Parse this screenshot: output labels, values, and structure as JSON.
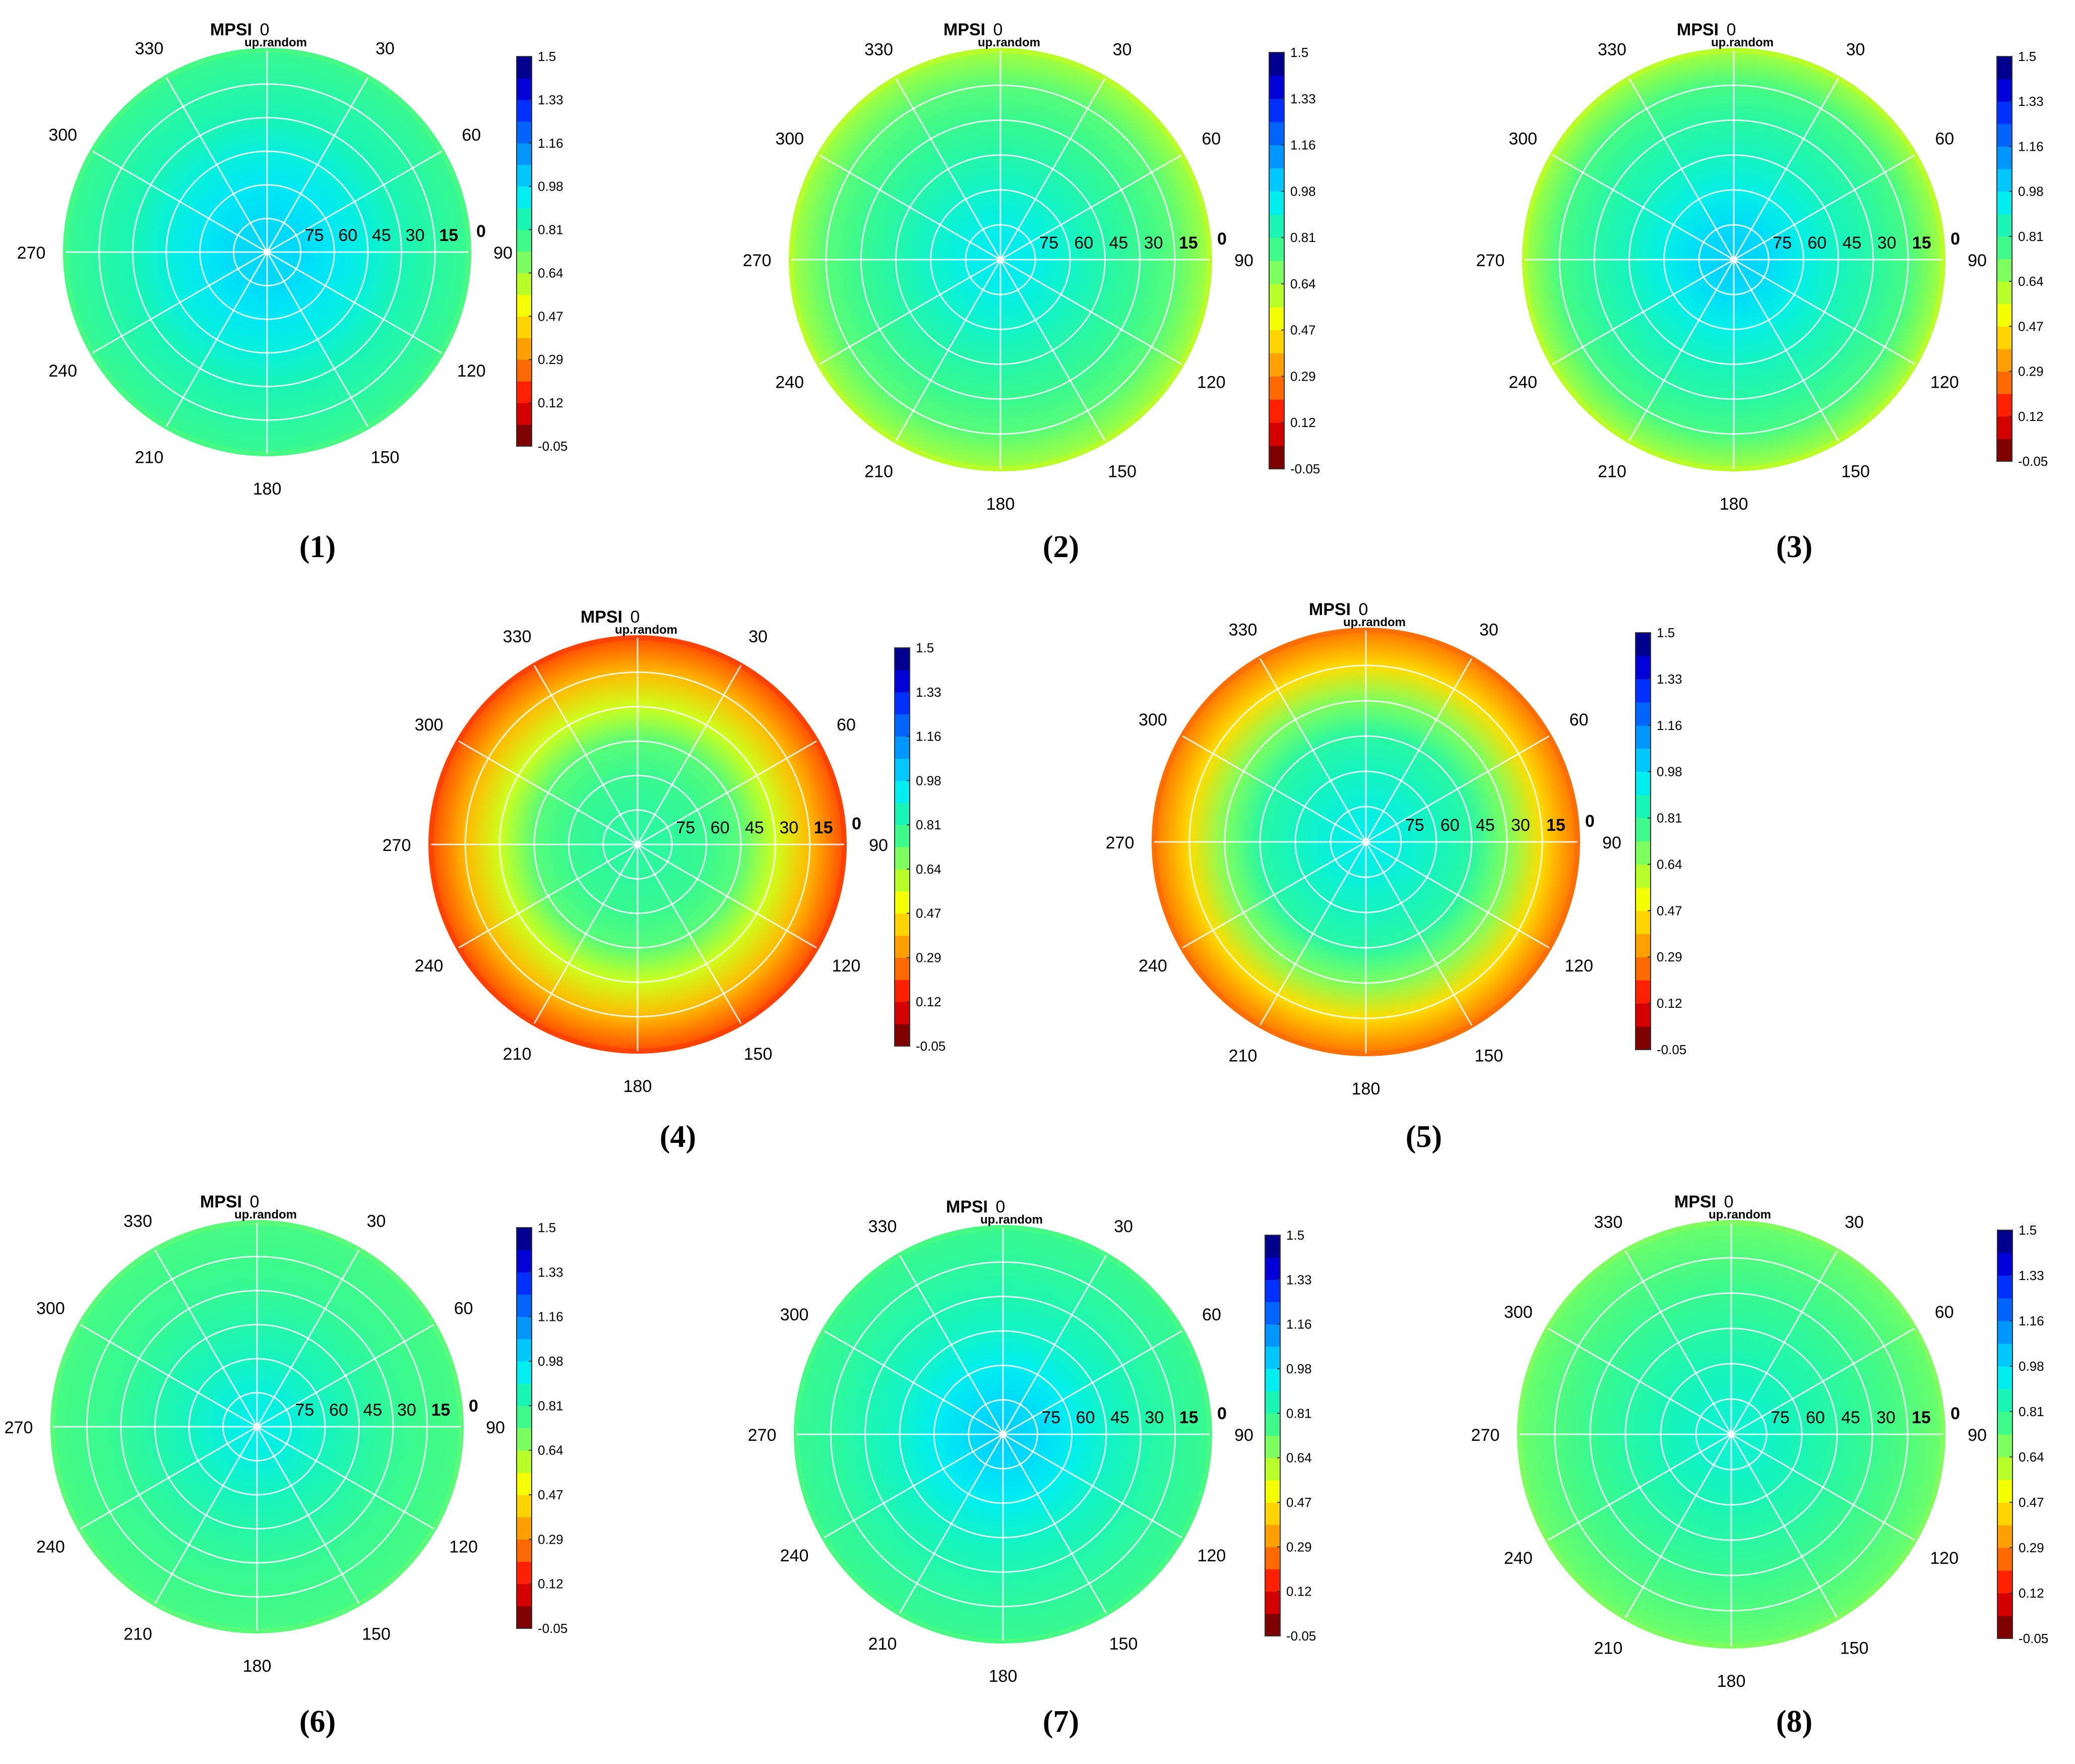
{
  "common": {
    "title_main": "MPSI",
    "title_sub_zero": "0",
    "title_subscript": "up.random",
    "azimuth_labels": [
      "0",
      "30",
      "60",
      "90",
      "120",
      "150",
      "180",
      "210",
      "240",
      "270",
      "300",
      "330"
    ],
    "radial_labels": [
      "75",
      "60",
      "45",
      "30",
      "15",
      "0"
    ],
    "colorbar_ticks": [
      "1.5",
      "1.33",
      "1.16",
      "0.98",
      "0.81",
      "0.64",
      "0.47",
      "0.29",
      "0.12",
      "-0.05"
    ],
    "colorbar_colors": [
      "#7f0000",
      "#d40000",
      "#ff2000",
      "#ff6a00",
      "#ffa000",
      "#ffd400",
      "#f4ff00",
      "#b8ff2a",
      "#7dff5f",
      "#3dfa8a",
      "#19f5b5",
      "#00eef0",
      "#00c8ff",
      "#0096ff",
      "#0064ff",
      "#0030ff",
      "#0000d8",
      "#00008f"
    ]
  },
  "chart_data": [
    {
      "type": "heatmap",
      "projection": "polar",
      "caption": "(1)",
      "title": "MPSI",
      "zlim": [
        -0.05,
        1.5
      ],
      "center_value": 0.96,
      "edge_value": 0.8,
      "rings": [
        0.96,
        0.95,
        0.93,
        0.9,
        0.86,
        0.83,
        0.8
      ]
    },
    {
      "type": "heatmap",
      "projection": "polar",
      "caption": "(2)",
      "title": "MPSI",
      "zlim": [
        -0.05,
        1.5
      ],
      "center_value": 0.93,
      "edge_value": 0.68,
      "rings": [
        0.93,
        0.91,
        0.88,
        0.84,
        0.8,
        0.76,
        0.68
      ]
    },
    {
      "type": "heatmap",
      "projection": "polar",
      "caption": "(3)",
      "title": "MPSI",
      "zlim": [
        -0.05,
        1.5
      ],
      "center_value": 0.97,
      "edge_value": 0.68,
      "rings": [
        0.97,
        0.95,
        0.91,
        0.87,
        0.83,
        0.78,
        0.68
      ]
    },
    {
      "type": "heatmap",
      "projection": "polar",
      "caption": "(4)",
      "title": "MPSI",
      "zlim": [
        -0.05,
        1.5
      ],
      "center_value": 0.83,
      "edge_value": 0.22,
      "rings": [
        0.83,
        0.82,
        0.8,
        0.76,
        0.64,
        0.45,
        0.22
      ]
    },
    {
      "type": "heatmap",
      "projection": "polar",
      "caption": "(5)",
      "title": "MPSI",
      "zlim": [
        -0.05,
        1.5
      ],
      "center_value": 0.92,
      "edge_value": 0.3,
      "rings": [
        0.92,
        0.9,
        0.87,
        0.83,
        0.72,
        0.52,
        0.3
      ]
    },
    {
      "type": "heatmap",
      "projection": "polar",
      "caption": "(6)",
      "title": "MPSI",
      "zlim": [
        -0.05,
        1.5
      ],
      "center_value": 0.92,
      "edge_value": 0.78,
      "rings": [
        0.92,
        0.9,
        0.87,
        0.84,
        0.81,
        0.79,
        0.78
      ]
    },
    {
      "type": "heatmap",
      "projection": "polar",
      "caption": "(7)",
      "title": "MPSI",
      "zlim": [
        -0.05,
        1.5
      ],
      "center_value": 0.97,
      "edge_value": 0.8,
      "rings": [
        0.97,
        0.95,
        0.92,
        0.88,
        0.85,
        0.82,
        0.8
      ]
    },
    {
      "type": "heatmap",
      "projection": "polar",
      "caption": "(8)",
      "title": "MPSI",
      "zlim": [
        -0.05,
        1.5
      ],
      "center_value": 0.89,
      "edge_value": 0.74,
      "rings": [
        0.89,
        0.88,
        0.86,
        0.83,
        0.8,
        0.77,
        0.74
      ]
    }
  ]
}
